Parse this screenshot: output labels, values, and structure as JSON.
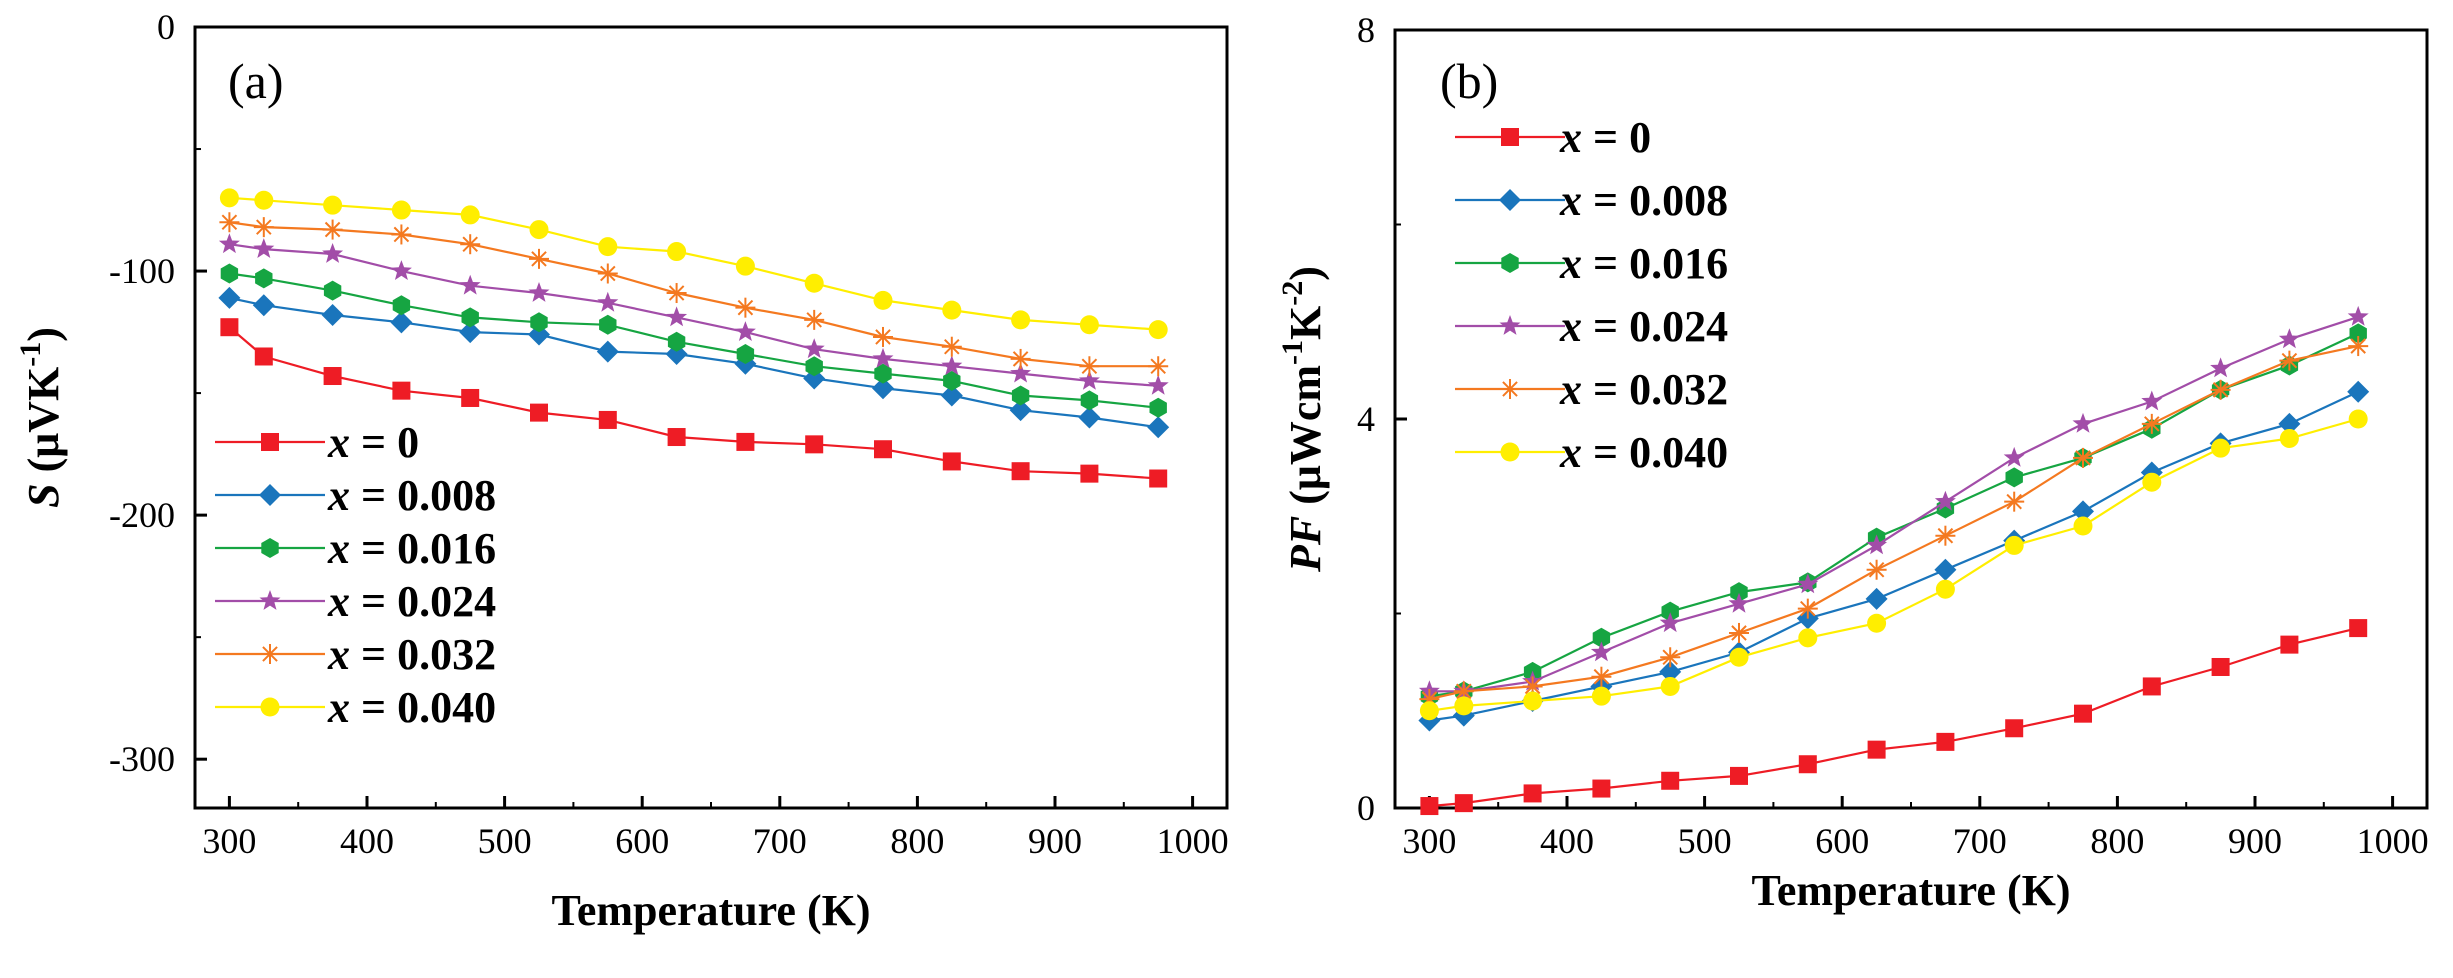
{
  "chart_data": [
    {
      "type": "line",
      "panel_label": "(a)",
      "xlabel": "Temperature (K)",
      "ylabel": {
        "symbol": "S",
        "unit_open": " (μVK",
        "unit_sup": "-1",
        "unit_close": ")"
      },
      "xlim": [
        275,
        1025
      ],
      "ylim": [
        -320,
        0
      ],
      "xticks": [
        "300",
        "400",
        "500",
        "600",
        "700",
        "800",
        "900",
        "1000"
      ],
      "yticks": [
        "0",
        "-100",
        "-200",
        "-300"
      ],
      "legend_position": "bottom-left",
      "x": [
        300,
        325,
        375,
        425,
        475,
        525,
        575,
        625,
        675,
        725,
        775,
        825,
        875,
        925,
        975
      ],
      "series": [
        {
          "name_var": "x",
          "name_rest": " = 0",
          "color": "#ee1c25",
          "marker": "square",
          "values": [
            -123,
            -135,
            -143,
            -149,
            -152,
            -158,
            -161,
            -168,
            -170,
            -171,
            -173,
            -178,
            -182,
            -183,
            -185
          ]
        },
        {
          "name_var": "x",
          "name_rest": " = 0.008",
          "color": "#1a75bc",
          "marker": "diamond",
          "values": [
            -111,
            -114,
            -118,
            -121,
            -125,
            -126,
            -133,
            -134,
            -138,
            -144,
            -148,
            -151,
            -157,
            -160,
            -164
          ]
        },
        {
          "name_var": "x",
          "name_rest": " = 0.016",
          "color": "#16a542",
          "marker": "hexagon",
          "values": [
            -101,
            -103,
            -108,
            -114,
            -119,
            -121,
            -122,
            -129,
            -134,
            -139,
            -142,
            -145,
            -151,
            -153,
            -156
          ]
        },
        {
          "name_var": "x",
          "name_rest": " = 0.024",
          "color": "#a24da8",
          "marker": "star",
          "values": [
            -89,
            -91,
            -93,
            -100,
            -106,
            -109,
            -113,
            -119,
            -125,
            -132,
            -136,
            -139,
            -142,
            -145,
            -147
          ]
        },
        {
          "name_var": "x",
          "name_rest": " = 0.032",
          "color": "#f47920",
          "marker": "asterisk",
          "values": [
            -80,
            -82,
            -83,
            -85,
            -89,
            -95,
            -101,
            -109,
            -115,
            -120,
            -127,
            -131,
            -136,
            -139,
            -139
          ]
        },
        {
          "name_var": "x",
          "name_rest": " = 0.040",
          "color": "#ffee00",
          "marker": "circle",
          "values": [
            -70,
            -71,
            -73,
            -75,
            -77,
            -83,
            -90,
            -92,
            -98,
            -105,
            -112,
            -116,
            -120,
            -122,
            -124
          ]
        }
      ]
    },
    {
      "type": "line",
      "panel_label": "(b)",
      "xlabel": "Temperature (K)",
      "ylabel": {
        "symbol": "PF",
        "unit_open": " (μWcm",
        "unit_sup": "-1",
        "unit_mid": "K",
        "unit_sup2": "-2",
        "unit_close": ")"
      },
      "xlim": [
        275,
        1025
      ],
      "ylim": [
        0,
        8
      ],
      "xticks": [
        "300",
        "400",
        "500",
        "600",
        "700",
        "800",
        "900",
        "1000"
      ],
      "yticks": [
        "0",
        "4",
        "8"
      ],
      "legend_position": "top-left",
      "x": [
        300,
        325,
        375,
        425,
        475,
        525,
        575,
        625,
        675,
        725,
        775,
        825,
        875,
        925,
        975
      ],
      "series": [
        {
          "name_var": "x",
          "name_rest": " = 0",
          "color": "#ee1c25",
          "marker": "square",
          "values": [
            0.02,
            0.05,
            0.15,
            0.2,
            0.28,
            0.33,
            0.45,
            0.6,
            0.68,
            0.82,
            0.97,
            1.25,
            1.45,
            1.68,
            1.85
          ]
        },
        {
          "name_var": "x",
          "name_rest": " = 0.008",
          "color": "#1a75bc",
          "marker": "diamond",
          "values": [
            0.9,
            0.95,
            1.1,
            1.25,
            1.4,
            1.6,
            1.95,
            2.15,
            2.45,
            2.75,
            3.05,
            3.45,
            3.75,
            3.95,
            4.28
          ]
        },
        {
          "name_var": "x",
          "name_rest": " = 0.016",
          "color": "#16a542",
          "marker": "hexagon",
          "values": [
            1.15,
            1.2,
            1.4,
            1.75,
            2.02,
            2.22,
            2.32,
            2.78,
            3.08,
            3.4,
            3.6,
            3.9,
            4.3,
            4.55,
            4.88
          ]
        },
        {
          "name_var": "x",
          "name_rest": " = 0.024",
          "color": "#a24da8",
          "marker": "star",
          "values": [
            1.2,
            1.2,
            1.3,
            1.6,
            1.9,
            2.1,
            2.3,
            2.7,
            3.15,
            3.6,
            3.95,
            4.18,
            4.52,
            4.82,
            5.05
          ]
        },
        {
          "name_var": "x",
          "name_rest": " = 0.032",
          "color": "#f47920",
          "marker": "asterisk",
          "values": [
            1.12,
            1.2,
            1.25,
            1.35,
            1.55,
            1.8,
            2.05,
            2.45,
            2.8,
            3.15,
            3.6,
            3.95,
            4.3,
            4.6,
            4.75
          ]
        },
        {
          "name_var": "x",
          "name_rest": " = 0.040",
          "color": "#ffee00",
          "marker": "circle",
          "values": [
            1.0,
            1.05,
            1.1,
            1.15,
            1.25,
            1.55,
            1.75,
            1.9,
            2.25,
            2.7,
            2.9,
            3.35,
            3.7,
            3.8,
            4.0
          ]
        }
      ]
    }
  ]
}
